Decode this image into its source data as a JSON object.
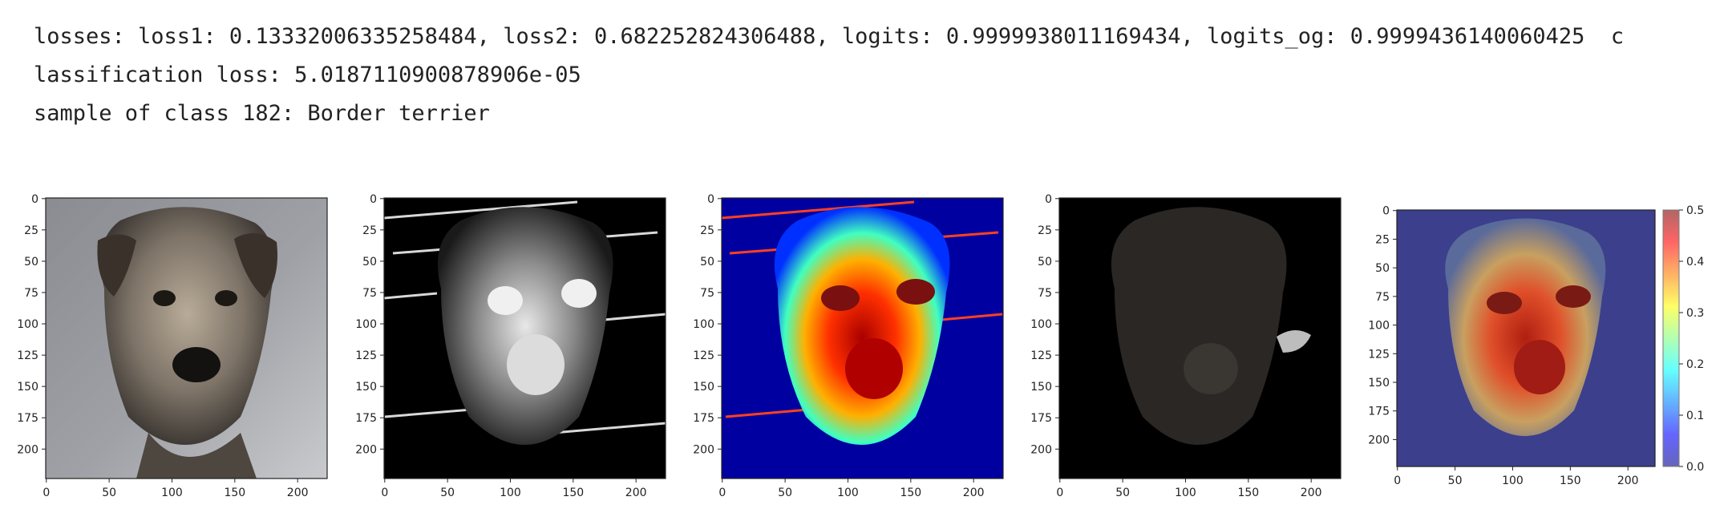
{
  "console": {
    "lines": [
      "losses: loss1: 0.13332006335258484, loss2: 0.682252824306488, logits: 0.9999938011169434, logits_og: 0.9999436140060425  c",
      "lassification loss: 5.0187110900878906e-05",
      "sample of class 182: Border terrier"
    ]
  },
  "figure": {
    "panels": [
      {
        "name": "original-image-panel",
        "content": "original photo",
        "image_label": "Border terrier photo"
      },
      {
        "name": "grayscale-mask-panel",
        "content": "grayscale attribution mask"
      },
      {
        "name": "jet-heatmap-panel",
        "content": "jet colormap heatmap"
      },
      {
        "name": "dimmed-masked-panel",
        "content": "dimmed masked image"
      },
      {
        "name": "overlay-heatmap-panel",
        "content": "heatmap overlay with colorbar"
      }
    ],
    "x_ticks": [
      "0",
      "50",
      "100",
      "150",
      "200"
    ],
    "y_ticks": [
      "0",
      "25",
      "50",
      "75",
      "100",
      "125",
      "150",
      "175",
      "200"
    ],
    "colorbar": {
      "colormap": "jet",
      "ticks": [
        "0.0",
        "0.1",
        "0.2",
        "0.3",
        "0.4",
        "0.5"
      ]
    }
  },
  "colors": {
    "jet_low": "#00008f",
    "jet_high": "#800000",
    "text": "#222222"
  }
}
